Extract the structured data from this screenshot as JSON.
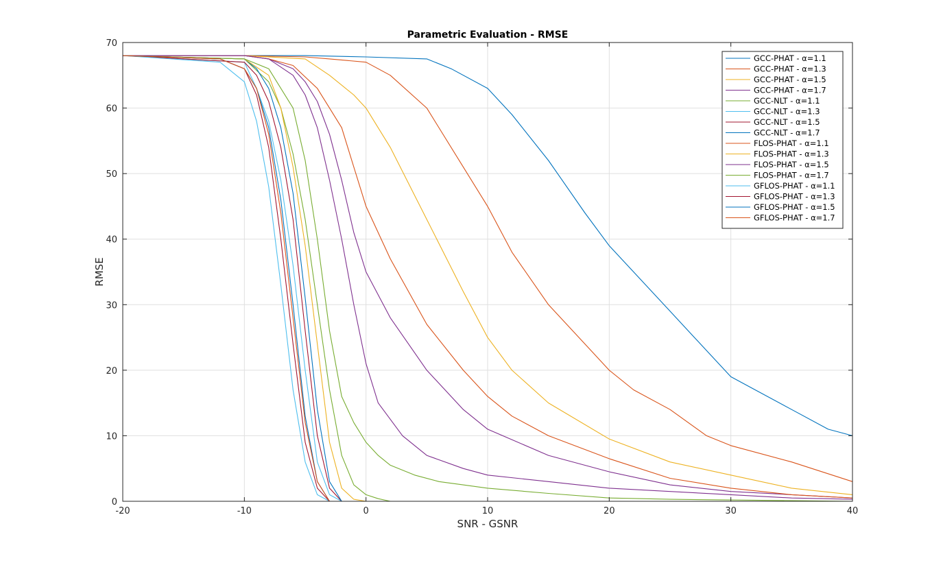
{
  "chart_data": {
    "type": "line",
    "title": "Parametric Evaluation - RMSE",
    "xlabel": "SNR - GSNR",
    "ylabel": "RMSE",
    "xlim": [
      -20,
      40
    ],
    "ylim": [
      0,
      70
    ],
    "xticks": [
      -20,
      -10,
      0,
      10,
      20,
      30,
      40
    ],
    "yticks": [
      0,
      10,
      20,
      30,
      40,
      50,
      60,
      70
    ],
    "grid": true,
    "legend_position": "top-right",
    "series": [
      {
        "name": "GCC-PHAT - α=1.1",
        "color": "#0072BD",
        "x": [
          -20,
          -10,
          -5,
          0,
          5,
          7,
          10,
          12,
          15,
          18,
          20,
          22,
          25,
          27,
          30,
          32,
          35,
          38,
          40
        ],
        "y": [
          68,
          68,
          68,
          67.8,
          67.5,
          66,
          63,
          59,
          52,
          44,
          39,
          35,
          29,
          25,
          19,
          17,
          14,
          11,
          10
        ]
      },
      {
        "name": "GCC-PHAT - α=1.3",
        "color": "#D95319",
        "x": [
          -20,
          -10,
          -5,
          -3,
          0,
          2,
          5,
          8,
          10,
          12,
          15,
          18,
          20,
          22,
          25,
          28,
          30,
          35,
          40
        ],
        "y": [
          68,
          68,
          67.8,
          67.5,
          67,
          65,
          60,
          51,
          45,
          38,
          30,
          24,
          20,
          17,
          14,
          10,
          8.5,
          6,
          3
        ]
      },
      {
        "name": "GCC-PHAT - α=1.5",
        "color": "#EDB120",
        "x": [
          -20,
          -10,
          -5,
          -3,
          -1,
          0,
          2,
          5,
          8,
          10,
          12,
          15,
          20,
          25,
          30,
          35,
          40
        ],
        "y": [
          68,
          68,
          67.5,
          65,
          62,
          60,
          54,
          43,
          32,
          25,
          20,
          15,
          9.5,
          6,
          4,
          2,
          1
        ]
      },
      {
        "name": "GCC-PHAT - α=1.7",
        "color": "#7E2F8E",
        "x": [
          -20,
          -10,
          -8,
          -6,
          -5,
          -4,
          -3,
          -2,
          -1,
          0,
          2,
          5,
          8,
          10,
          15,
          20,
          25,
          30,
          35,
          40
        ],
        "y": [
          68,
          68,
          67.5,
          66,
          64,
          61,
          56,
          49,
          41,
          35,
          28,
          20,
          14,
          11,
          7,
          4.5,
          2.5,
          1.5,
          1,
          0.5
        ]
      },
      {
        "name": "GCC-NLT - α=1.1",
        "color": "#77AC30",
        "x": [
          -20,
          -10,
          -8,
          -7,
          -6,
          -5,
          -4,
          -3,
          -2,
          -1,
          0,
          1,
          2,
          3
        ],
        "y": [
          68,
          67.5,
          64,
          60,
          53,
          43,
          30,
          17,
          7,
          2.5,
          1,
          0.4,
          0,
          0
        ]
      },
      {
        "name": "GCC-NLT - α=1.3",
        "color": "#4DBEEE",
        "x": [
          -20,
          -10,
          -9,
          -8,
          -7,
          -6,
          -5,
          -4,
          -3,
          -2,
          -1
        ],
        "y": [
          68,
          67,
          63,
          58,
          49,
          36,
          20,
          6,
          1,
          0,
          0
        ]
      },
      {
        "name": "GCC-NLT - α=1.5",
        "color": "#A2142F",
        "x": [
          -20,
          -10,
          -9,
          -8,
          -7,
          -6,
          -5,
          -4,
          -3,
          -2,
          -1
        ],
        "y": [
          68,
          67,
          65,
          61,
          54,
          43,
          26,
          10,
          2,
          0,
          0
        ]
      },
      {
        "name": "GCC-NLT - α=1.7",
        "color": "#0072BD",
        "x": [
          -20,
          -10,
          -9,
          -8,
          -7,
          -6,
          -5,
          -4,
          -3,
          -2,
          -1
        ],
        "y": [
          68,
          67.5,
          66,
          63,
          57,
          47,
          31,
          14,
          3,
          0,
          0
        ]
      },
      {
        "name": "FLOS-PHAT - α=1.1",
        "color": "#D95319",
        "x": [
          -20,
          -10,
          -8,
          -6,
          -4,
          -3,
          -2,
          -1,
          0,
          2,
          5,
          8,
          10,
          12,
          15,
          20,
          25,
          30,
          35,
          40
        ],
        "y": [
          68,
          68,
          67.5,
          66.5,
          63,
          60,
          57,
          51,
          45,
          37,
          27,
          20,
          16,
          13,
          10,
          6.5,
          3.5,
          2,
          1,
          0.5
        ]
      },
      {
        "name": "FLOS-PHAT - α=1.3",
        "color": "#EDB120",
        "x": [
          -20,
          -10,
          -8,
          -7,
          -6,
          -5,
          -4,
          -3,
          -2,
          -1,
          0,
          1
        ],
        "y": [
          68,
          67.5,
          65,
          60,
          51,
          39,
          24,
          9,
          2,
          0.3,
          0,
          0
        ]
      },
      {
        "name": "FLOS-PHAT - α=1.5",
        "color": "#7E2F8E",
        "x": [
          -20,
          -10,
          -8,
          -6,
          -5,
          -4,
          -3,
          -2,
          -1,
          0,
          1,
          3,
          5,
          8,
          10,
          15,
          20,
          25,
          30,
          35,
          40
        ],
        "y": [
          68,
          68,
          67.5,
          65,
          62,
          57,
          49,
          40,
          30,
          21,
          15,
          10,
          7,
          5,
          4,
          3,
          2,
          1.5,
          1,
          0.5,
          0.3
        ]
      },
      {
        "name": "FLOS-PHAT - α=1.7",
        "color": "#77AC30",
        "x": [
          -20,
          -10,
          -8,
          -6,
          -5,
          -4,
          -3,
          -2,
          -1,
          0,
          1,
          2,
          4,
          6,
          8,
          10,
          15,
          20,
          25,
          30,
          35,
          40
        ],
        "y": [
          68,
          67.5,
          66,
          60,
          52,
          40,
          26,
          16,
          12,
          9,
          7,
          5.5,
          4,
          3,
          2.5,
          2,
          1.2,
          0.5,
          0.3,
          0.2,
          0.1,
          0
        ]
      },
      {
        "name": "GFLOS-PHAT - α=1.1",
        "color": "#4DBEEE",
        "x": [
          -20,
          -12,
          -10,
          -9,
          -8,
          -7,
          -6,
          -5,
          -4,
          -3,
          -2
        ],
        "y": [
          68,
          67,
          64,
          58,
          48,
          33,
          17,
          6,
          1,
          0,
          0
        ]
      },
      {
        "name": "GFLOS-PHAT - α=1.3",
        "color": "#A2142F",
        "x": [
          -20,
          -12,
          -10,
          -9,
          -8,
          -7,
          -6,
          -5,
          -4,
          -3,
          -2
        ],
        "y": [
          68,
          67.5,
          66,
          62,
          54,
          40,
          24,
          9,
          2,
          0,
          0
        ]
      },
      {
        "name": "GFLOS-PHAT - α=1.5",
        "color": "#0072BD",
        "x": [
          -20,
          -12,
          -10,
          -9,
          -8,
          -7,
          -6,
          -5,
          -4,
          -3,
          -2
        ],
        "y": [
          68,
          67.5,
          66,
          63,
          57,
          46,
          30,
          13,
          3,
          0,
          0
        ]
      },
      {
        "name": "GFLOS-PHAT - α=1.7",
        "color": "#D95319",
        "x": [
          -20,
          -12,
          -10,
          -9,
          -8,
          -7,
          -6,
          -5,
          -4,
          -3,
          -2
        ],
        "y": [
          68,
          67.5,
          66,
          63,
          56,
          44,
          28,
          12,
          3,
          0,
          0
        ]
      }
    ]
  }
}
